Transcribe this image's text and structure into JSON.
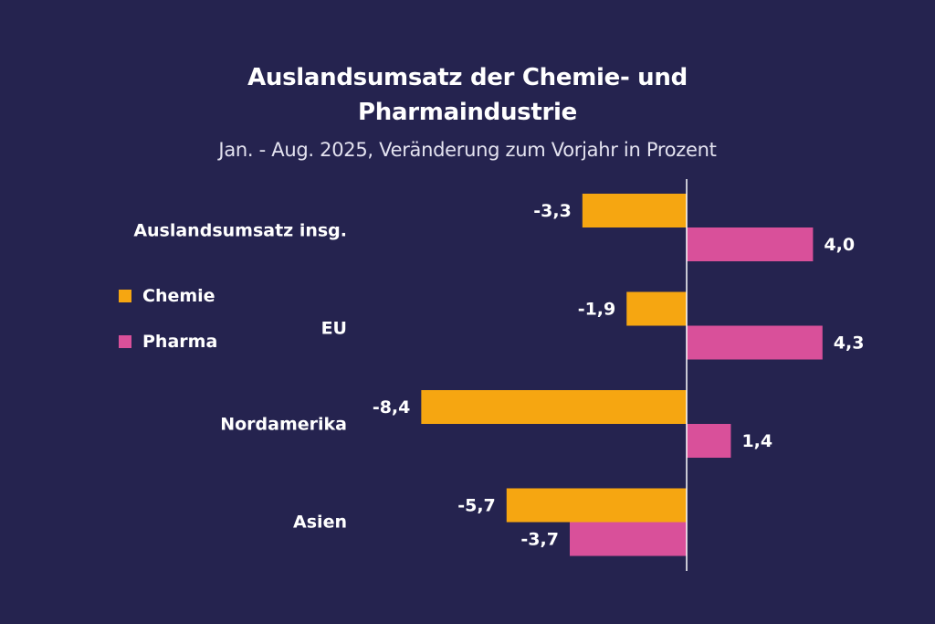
{
  "colors": {
    "background": "#25234f",
    "chemie": "#f6a611",
    "pharma": "#d9509a",
    "axis": "#ffffff",
    "text": "#ffffff"
  },
  "header": {
    "title_line1": "Auslandsumsatz der Chemie- und",
    "title_line2": "Pharmaindustrie",
    "subtitle": "Jan. - Aug. 2025, Veränderung zum Vorjahr in Prozent"
  },
  "legend": {
    "items": [
      {
        "label": "Chemie",
        "color": "#f6a611"
      },
      {
        "label": "Pharma",
        "color": "#d9509a"
      }
    ]
  },
  "chart_data": {
    "type": "bar",
    "orientation": "horizontal",
    "title": "Auslandsumsatz der Chemie- und Pharmaindustrie",
    "subtitle": "Jan. - Aug. 2025, Veränderung zum Vorjahr in Prozent",
    "categories": [
      "Auslandsumsatz insg.",
      "EU",
      "Nordamerika",
      "Asien"
    ],
    "series": [
      {
        "name": "Chemie",
        "values": [
          -3.3,
          -1.9,
          -8.4,
          -5.7
        ],
        "labels": [
          "-3,3",
          "-1,9",
          "-8,4",
          "-5,7"
        ]
      },
      {
        "name": "Pharma",
        "values": [
          4.0,
          4.3,
          1.4,
          -3.7
        ],
        "labels": [
          "4,0",
          "4,3",
          "1,4",
          "-3,7"
        ]
      }
    ],
    "xlabel": "",
    "ylabel": "",
    "grid": false,
    "legend_position": "left"
  }
}
